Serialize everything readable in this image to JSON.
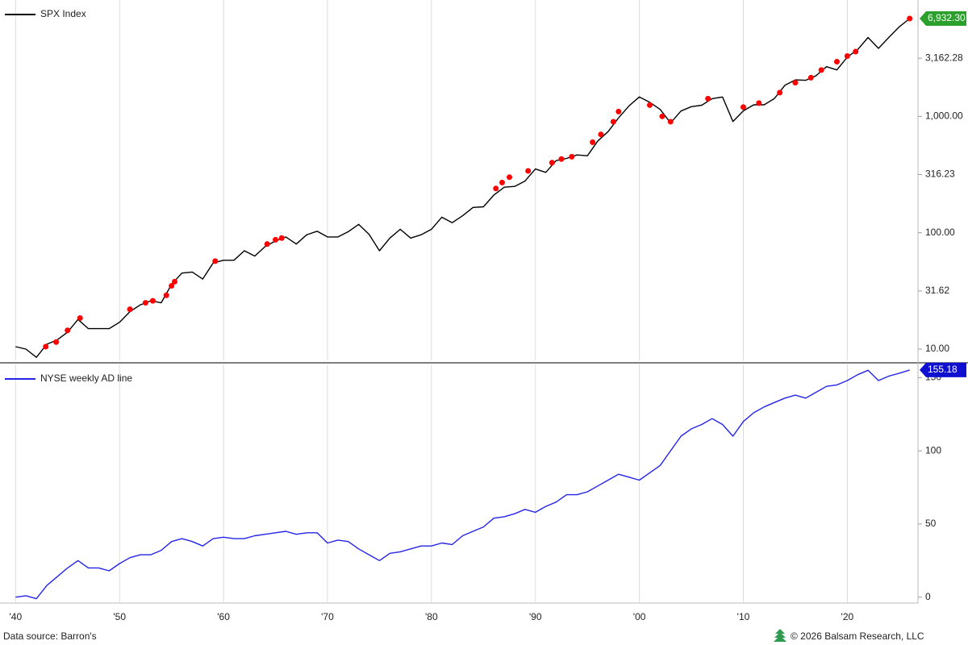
{
  "chart_data": [
    {
      "type": "line",
      "log_scale": true,
      "xlim": [
        1938.5,
        2026.8
      ],
      "ylim": [
        8,
        10000
      ],
      "xticks": [
        1940,
        1950,
        1960,
        1970,
        1980,
        1990,
        2000,
        2010,
        2020
      ],
      "yticks": [
        {
          "value": 10,
          "label": "10.00"
        },
        {
          "value": 31.62,
          "label": "31.62"
        },
        {
          "value": 100,
          "label": "100.00"
        },
        {
          "value": 316.23,
          "label": "316.23"
        },
        {
          "value": 1000,
          "label": "1,000.00"
        },
        {
          "value": 3162.28,
          "label": "3,162.28"
        }
      ],
      "grid": "x",
      "legend": "top-left",
      "series": [
        {
          "name": "SPX Index",
          "type": "line",
          "color": "#000000",
          "x": [
            1940,
            1941,
            1942,
            1943,
            1944,
            1945,
            1946,
            1947,
            1948,
            1949,
            1950,
            1951,
            1952,
            1953,
            1954,
            1955,
            1956,
            1957,
            1958,
            1959,
            1960,
            1961,
            1962,
            1963,
            1964,
            1965,
            1966,
            1967,
            1968,
            1969,
            1970,
            1971,
            1972,
            1973,
            1974,
            1975,
            1976,
            1977,
            1978,
            1979,
            1980,
            1981,
            1982,
            1983,
            1984,
            1985,
            1986,
            1987,
            1988,
            1989,
            1990,
            1991,
            1992,
            1993,
            1994,
            1995,
            1996,
            1997,
            1998,
            1999,
            2000,
            2001,
            2002,
            2003,
            2004,
            2005,
            2006,
            2007,
            2008,
            2009,
            2010,
            2011,
            2012,
            2013,
            2014,
            2015,
            2016,
            2017,
            2018,
            2019,
            2020,
            2021,
            2022,
            2023,
            2024,
            2025,
            2026
          ],
          "values": [
            10.5,
            10,
            8.5,
            11,
            12,
            14,
            18,
            15,
            15,
            15,
            17,
            21,
            24,
            26,
            25,
            36,
            45,
            46,
            40,
            55,
            58,
            58,
            70,
            63,
            76,
            85,
            92,
            80,
            96,
            103,
            92,
            92,
            102,
            118,
            97,
            70,
            90,
            107,
            90,
            96,
            107,
            136,
            122,
            140,
            165,
            167,
            211,
            246,
            250,
            278,
            353,
            330,
            417,
            435,
            466,
            459,
            615,
            740,
            970,
            1229,
            1469,
            1320,
            1148,
            880,
            1111,
            1212,
            1248,
            1418,
            1468,
            903,
            1115,
            1257,
            1257,
            1426,
            1848,
            2058,
            2043,
            2238,
            2673,
            2506,
            3230,
            3756,
            4766,
            3839,
            4769,
            5881,
            6932.3
          ],
          "end_label": "6,932.30",
          "end_label_color": "#2ca02c"
        },
        {
          "type": "scatter",
          "color": "#ff0000",
          "x": [
            1942.9,
            1943.9,
            1945.0,
            1946.2,
            1951.0,
            1952.5,
            1953.2,
            1954.5,
            1955.0,
            1955.3,
            1959.2,
            1964.2,
            1965.0,
            1965.6,
            1986.2,
            1986.8,
            1987.5,
            1989.3,
            1991.6,
            1992.5,
            1993.5,
            1995.5,
            1996.3,
            1997.5,
            1998.0,
            2001.0,
            2002.2,
            2003.0,
            2006.6,
            2010.0,
            2011.5,
            2013.5,
            2015.0,
            2016.5,
            2017.5,
            2019.0,
            2020.0,
            2020.8,
            2026.0
          ],
          "values": [
            10.5,
            11.5,
            14.5,
            18.5,
            22,
            25,
            26,
            29,
            35,
            38,
            57,
            80,
            87,
            90,
            240,
            270,
            300,
            340,
            400,
            430,
            450,
            600,
            700,
            900,
            1100,
            1250,
            1000,
            900,
            1420,
            1200,
            1300,
            1600,
            1950,
            2150,
            2500,
            2950,
            3300,
            3600,
            6932.3
          ]
        }
      ]
    },
    {
      "type": "line",
      "log_scale": false,
      "xlim": [
        1938.5,
        2026.8
      ],
      "ylim": [
        -4,
        159
      ],
      "xticks": [
        {
          "value": 1940,
          "label": "'40"
        },
        {
          "value": 1950,
          "label": "'50"
        },
        {
          "value": 1960,
          "label": "'60"
        },
        {
          "value": 1970,
          "label": "'70"
        },
        {
          "value": 1980,
          "label": "'80"
        },
        {
          "value": 1990,
          "label": "'90"
        },
        {
          "value": 2000,
          "label": "'00"
        },
        {
          "value": 2010,
          "label": "'10"
        },
        {
          "value": 2020,
          "label": "'20"
        }
      ],
      "yticks": [
        0,
        50,
        100,
        150
      ],
      "grid": "x",
      "legend": "top-left",
      "series": [
        {
          "name": "NYSE weekly AD line",
          "type": "line",
          "color": "#2424e8",
          "x": [
            1940,
            1941,
            1942,
            1943,
            1944,
            1945,
            1946,
            1947,
            1948,
            1949,
            1950,
            1951,
            1952,
            1953,
            1954,
            1955,
            1956,
            1957,
            1958,
            1959,
            1960,
            1961,
            1962,
            1963,
            1964,
            1965,
            1966,
            1967,
            1968,
            1969,
            1970,
            1971,
            1972,
            1973,
            1974,
            1975,
            1976,
            1977,
            1978,
            1979,
            1980,
            1981,
            1982,
            1983,
            1984,
            1985,
            1986,
            1987,
            1988,
            1989,
            1990,
            1991,
            1992,
            1993,
            1994,
            1995,
            1996,
            1997,
            1998,
            1999,
            2000,
            2001,
            2002,
            2003,
            2004,
            2005,
            2006,
            2007,
            2008,
            2009,
            2010,
            2011,
            2012,
            2013,
            2014,
            2015,
            2016,
            2017,
            2018,
            2019,
            2020,
            2021,
            2022,
            2023,
            2024,
            2025,
            2026
          ],
          "values": [
            0,
            1,
            -1,
            8,
            14,
            20,
            25,
            20,
            20,
            18,
            23,
            27,
            29,
            29,
            32,
            38,
            40,
            38,
            35,
            40,
            41,
            40,
            40,
            42,
            43,
            44,
            45,
            43,
            44,
            44,
            37,
            39,
            38,
            33,
            29,
            25,
            30,
            31,
            33,
            35,
            35,
            37,
            36,
            42,
            45,
            48,
            54,
            55,
            57,
            60,
            58,
            62,
            65,
            70,
            70,
            72,
            76,
            80,
            84,
            82,
            80,
            85,
            90,
            100,
            110,
            115,
            118,
            122,
            118,
            110,
            120,
            126,
            130,
            133,
            136,
            138,
            136,
            140,
            144,
            145,
            148,
            152,
            155,
            148,
            151,
            153,
            155.18
          ],
          "end_label": "155.18",
          "end_label_color": "#1010d0"
        }
      ]
    }
  ],
  "footer": {
    "source": "Data source: Barron's",
    "copyright": "© 2026 Balsam Research, LLC"
  }
}
